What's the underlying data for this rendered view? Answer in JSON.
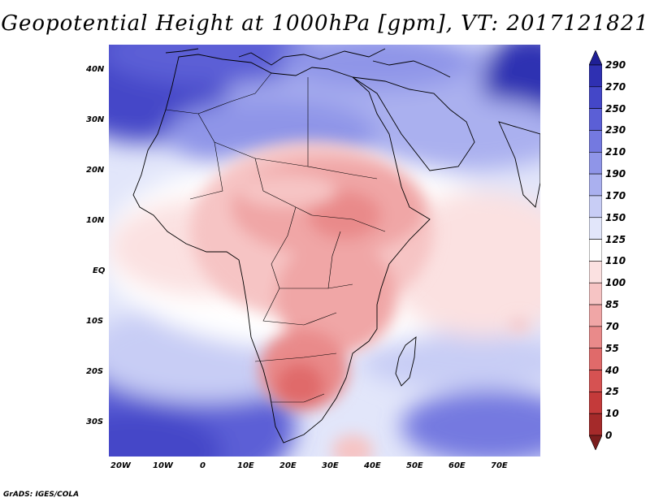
{
  "title": "Geopotential Height at 1000hPa [gpm], VT: 2017121821",
  "credit": "GrADS: IGES/COLA",
  "map": {
    "variable": "Geopotential Height",
    "level": "1000hPa",
    "units": "gpm",
    "valid_time": "2017121821",
    "lon_labels": [
      "20W",
      "10W",
      "0",
      "10E",
      "20E",
      "30E",
      "40E",
      "50E",
      "60E",
      "70E"
    ],
    "lat_labels": [
      "40N",
      "30N",
      "20N",
      "10N",
      "EQ",
      "10S",
      "20S",
      "30S"
    ]
  },
  "colorbar": {
    "levels": [
      "290",
      "270",
      "250",
      "230",
      "210",
      "190",
      "170",
      "150",
      "125",
      "110",
      "100",
      "85",
      "70",
      "55",
      "40",
      "25",
      "10",
      "0"
    ],
    "colors": [
      "#7b1d1d",
      "#a52a2a",
      "#c43a3a",
      "#d65252",
      "#e06a6a",
      "#e98a8a",
      "#f0a6a6",
      "#f6c4c4",
      "#fbe1e1",
      "#ffffff",
      "#e2e6fa",
      "#c8cdf5",
      "#aab0ef",
      "#8f95e8",
      "#7479e0",
      "#5b5fd6",
      "#4447c8",
      "#2f30b2",
      "#1f1f96"
    ]
  }
}
